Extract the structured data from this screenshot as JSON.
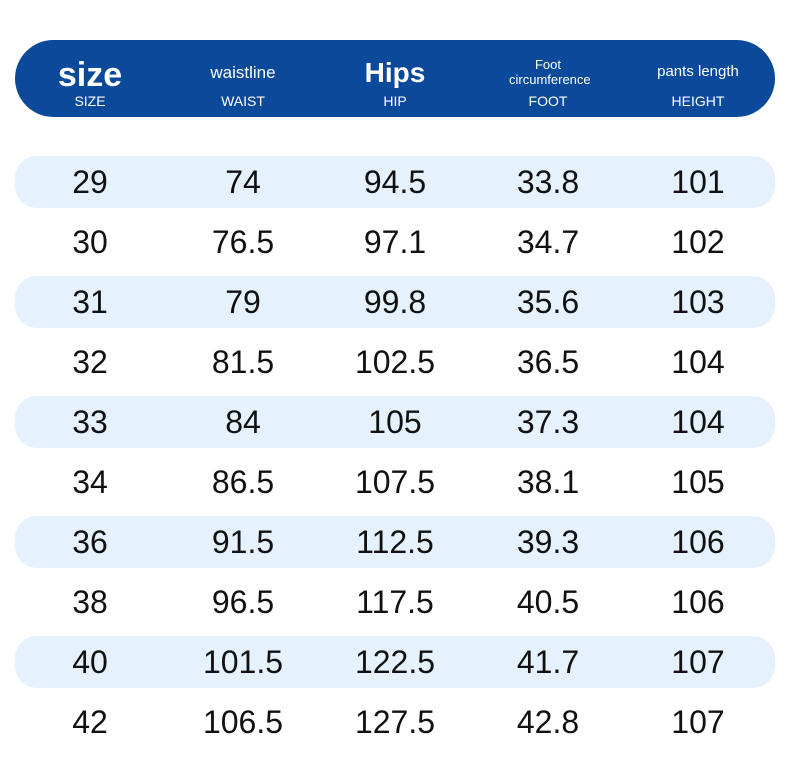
{
  "header": {
    "columns": [
      {
        "title": "size",
        "subtitle": "SIZE"
      },
      {
        "title": "waistline",
        "subtitle": "WAIST"
      },
      {
        "title": "Hips",
        "subtitle": "HIP"
      },
      {
        "title": "Foot circumference",
        "subtitle": "FOOT"
      },
      {
        "title": "pants length",
        "subtitle": "HEIGHT"
      }
    ]
  },
  "table": {
    "rows": [
      [
        "29",
        "74",
        "94.5",
        "33.8",
        "101"
      ],
      [
        "30",
        "76.5",
        "97.1",
        "34.7",
        "102"
      ],
      [
        "31",
        "79",
        "99.8",
        "35.6",
        "103"
      ],
      [
        "32",
        "81.5",
        "102.5",
        "36.5",
        "104"
      ],
      [
        "33",
        "84",
        "105",
        "37.3",
        "104"
      ],
      [
        "34",
        "86.5",
        "107.5",
        "38.1",
        "105"
      ],
      [
        "36",
        "91.5",
        "112.5",
        "39.3",
        "106"
      ],
      [
        "38",
        "96.5",
        "117.5",
        "40.5",
        "106"
      ],
      [
        "40",
        "101.5",
        "122.5",
        "41.7",
        "107"
      ],
      [
        "42",
        "106.5",
        "127.5",
        "42.8",
        "107"
      ]
    ]
  }
}
